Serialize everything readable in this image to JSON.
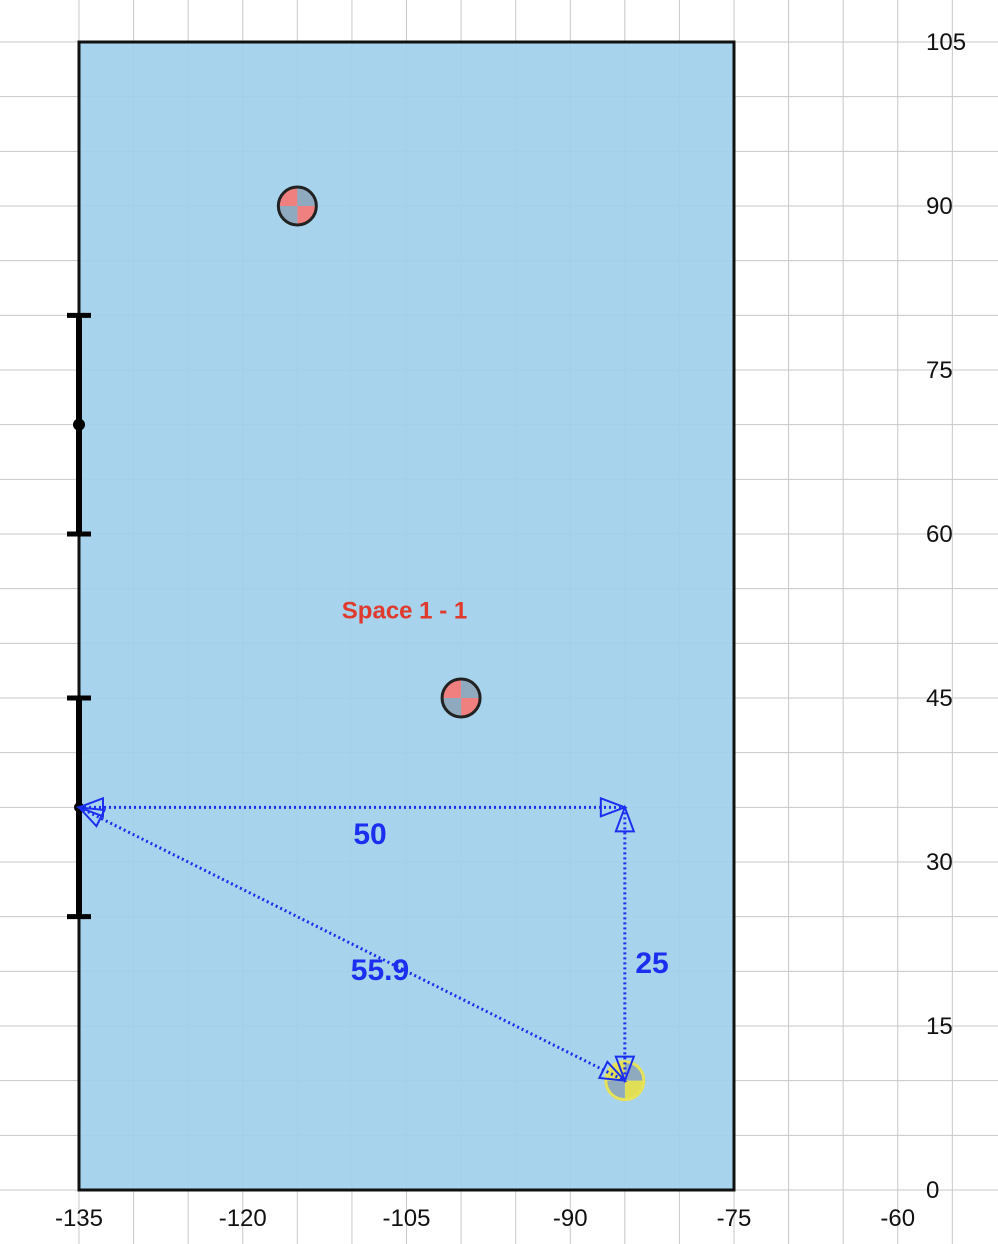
{
  "space": {
    "label": "Space 1 - 1",
    "label_color": "#e03a2c",
    "fill": "#a0cfec",
    "x_range": [
      -135,
      -75
    ],
    "y_range": [
      0,
      105
    ],
    "wall_segments": [
      {
        "name": "wall-segment-upper",
        "x": -135,
        "y1": 60,
        "y2": 80
      },
      {
        "name": "wall-segment-lower",
        "x": -135,
        "y1": 25,
        "y2": 45
      }
    ],
    "wall_point": {
      "x": -135,
      "y": 70
    }
  },
  "markers": [
    {
      "name": "marker-red-upper",
      "icon": "red-centroid-marker-icon",
      "x": -115,
      "y": 90,
      "colors": [
        "#f08080",
        "#8fa9bf"
      ],
      "stroke": "#222222"
    },
    {
      "name": "marker-red-middle",
      "icon": "red-centroid-marker-icon",
      "x": -100,
      "y": 45,
      "colors": [
        "#f08080",
        "#8fa9bf"
      ],
      "stroke": "#222222"
    },
    {
      "name": "marker-yellow-lower",
      "icon": "yellow-centroid-marker-icon",
      "x": -85,
      "y": 10,
      "colors": [
        "#e0de55",
        "#8fa9bf"
      ],
      "stroke": "#e6e25a"
    }
  ],
  "dimensions": {
    "color": "#1a2ff0",
    "horizontal": {
      "label": "50",
      "from": [
        -135,
        35
      ],
      "to": [
        -85,
        35
      ]
    },
    "vertical": {
      "label": "25",
      "from": [
        -85,
        35
      ],
      "to": [
        -85,
        10
      ]
    },
    "diagonal": {
      "label": "55.9",
      "from": [
        -135,
        35
      ],
      "to": [
        -85,
        10
      ]
    }
  },
  "axes": {
    "x_view": [
      -135,
      -54
    ],
    "y_view": [
      -5,
      109
    ],
    "x_ticks": [
      {
        "value": -135,
        "label": "-135"
      },
      {
        "value": -120,
        "label": "-120"
      },
      {
        "value": -105,
        "label": "-105"
      },
      {
        "value": -90,
        "label": "-90"
      },
      {
        "value": -75,
        "label": "-75"
      },
      {
        "value": -60,
        "label": "-60"
      }
    ],
    "y_ticks": [
      {
        "value": 0,
        "label": "0"
      },
      {
        "value": 15,
        "label": "15"
      },
      {
        "value": 30,
        "label": "30"
      },
      {
        "value": 45,
        "label": "45"
      },
      {
        "value": 60,
        "label": "60"
      },
      {
        "value": 75,
        "label": "75"
      },
      {
        "value": 90,
        "label": "90"
      },
      {
        "value": 105,
        "label": "105"
      }
    ],
    "grid_step": 5,
    "grid": true
  }
}
